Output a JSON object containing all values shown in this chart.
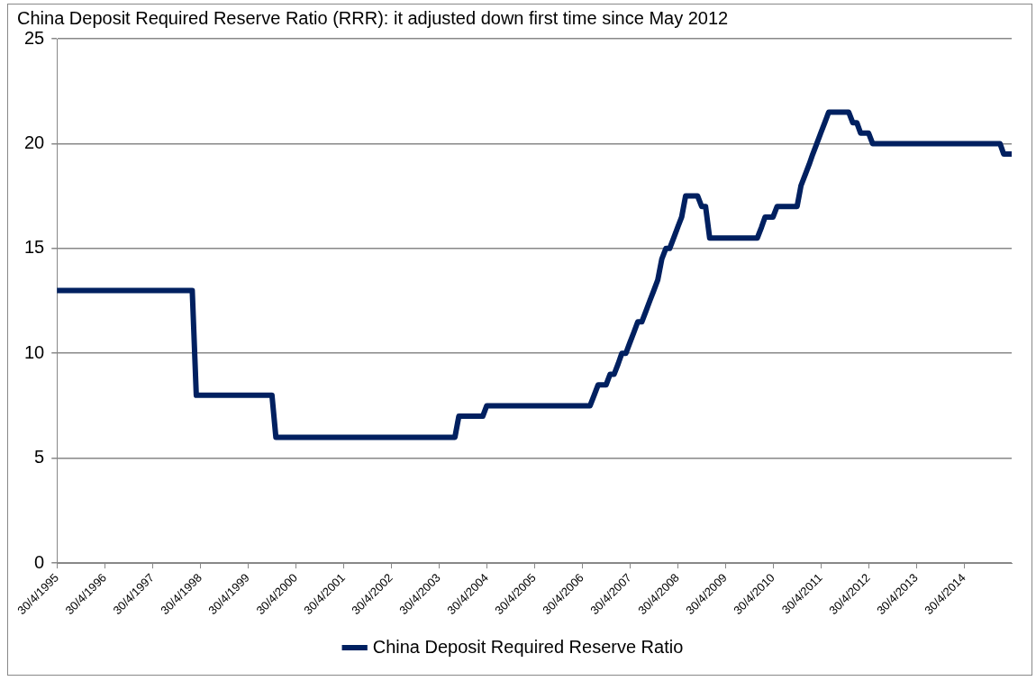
{
  "chart_data": {
    "type": "line",
    "title": "China Deposit Required Reserve Ratio (RRR): it adjusted down first time since May 2012",
    "x": [
      "1995-04-30",
      "1998-02-28",
      "1998-03-31",
      "1999-10-31",
      "1999-11-30",
      "2003-08-31",
      "2003-09-30",
      "2004-03-31",
      "2004-04-30",
      "2006-06-30",
      "2006-07-31",
      "2006-08-31",
      "2006-10-31",
      "2006-11-30",
      "2006-12-31",
      "2007-01-31",
      "2007-02-28",
      "2007-03-31",
      "2007-04-30",
      "2007-05-31",
      "2007-06-30",
      "2007-07-31",
      "2007-08-31",
      "2007-09-30",
      "2007-10-31",
      "2007-11-30",
      "2007-12-31",
      "2008-01-31",
      "2008-02-29",
      "2008-03-31",
      "2008-04-30",
      "2008-05-31",
      "2008-06-30",
      "2008-09-30",
      "2008-10-31",
      "2008-11-30",
      "2008-12-31",
      "2009-12-31",
      "2010-01-31",
      "2010-02-28",
      "2010-04-30",
      "2010-05-31",
      "2010-10-31",
      "2010-11-30",
      "2010-12-31",
      "2011-01-31",
      "2011-02-28",
      "2011-03-31",
      "2011-04-30",
      "2011-05-31",
      "2011-06-30",
      "2011-11-30",
      "2011-12-31",
      "2012-01-31",
      "2012-02-29",
      "2012-04-30",
      "2012-05-31",
      "2015-01-31",
      "2015-02-28",
      "2015-04-30"
    ],
    "series": [
      {
        "name": "China Deposit Required Reserve Ratio",
        "color": "#002060",
        "values": [
          13,
          13,
          8,
          8,
          6,
          6,
          7,
          7,
          7.5,
          7.5,
          8,
          8.5,
          8.5,
          9,
          9,
          9.5,
          10,
          10,
          10.5,
          11,
          11.5,
          11.5,
          12,
          12.5,
          13,
          13.5,
          14.5,
          15,
          15,
          15.5,
          16,
          16.5,
          17.5,
          17.5,
          17,
          17,
          15.5,
          15.5,
          16,
          16.5,
          16.5,
          17,
          17,
          18,
          18.5,
          19,
          19.5,
          20,
          20.5,
          21,
          21.5,
          21.5,
          21,
          21,
          20.5,
          20.5,
          20,
          20,
          19.5,
          19.5
        ]
      }
    ],
    "xlim": [
      "1995-04-30",
      "2015-04-30"
    ],
    "xticks": [
      {
        "value": "1995-04-30",
        "label": "30/4/1995"
      },
      {
        "value": "1996-04-30",
        "label": "30/4/1996"
      },
      {
        "value": "1997-04-30",
        "label": "30/4/1997"
      },
      {
        "value": "1998-04-30",
        "label": "30/4/1998"
      },
      {
        "value": "1999-04-30",
        "label": "30/4/1999"
      },
      {
        "value": "2000-04-30",
        "label": "30/4/2000"
      },
      {
        "value": "2001-04-30",
        "label": "30/4/2001"
      },
      {
        "value": "2002-04-30",
        "label": "30/4/2002"
      },
      {
        "value": "2003-04-30",
        "label": "30/4/2003"
      },
      {
        "value": "2004-04-30",
        "label": "30/4/2004"
      },
      {
        "value": "2005-04-30",
        "label": "30/4/2005"
      },
      {
        "value": "2006-04-30",
        "label": "30/4/2006"
      },
      {
        "value": "2007-04-30",
        "label": "30/4/2007"
      },
      {
        "value": "2008-04-30",
        "label": "30/4/2008"
      },
      {
        "value": "2009-04-30",
        "label": "30/4/2009"
      },
      {
        "value": "2010-04-30",
        "label": "30/4/2010"
      },
      {
        "value": "2011-04-30",
        "label": "30/4/2011"
      },
      {
        "value": "2012-04-30",
        "label": "30/4/2012"
      },
      {
        "value": "2013-04-30",
        "label": "30/4/2013"
      },
      {
        "value": "2014-04-30",
        "label": "30/4/2014"
      }
    ],
    "ylim": [
      0,
      25
    ],
    "yticks": [
      0,
      5,
      10,
      15,
      20,
      25
    ],
    "grid": "y",
    "legend": "bottom",
    "marker": "none",
    "line_style": "solid"
  }
}
